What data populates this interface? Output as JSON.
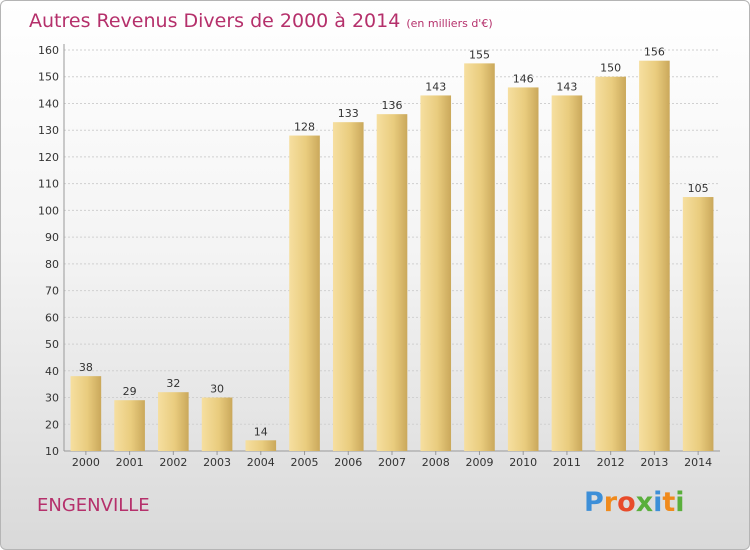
{
  "title": "Autres Revenus Divers de 2000 à 2014",
  "subtitle": "(en milliers d'€)",
  "commune": "ENGENVILLE",
  "logo_text": "Proxiti",
  "chart_data": {
    "type": "bar",
    "title": "Autres Revenus Divers de 2000 à 2014",
    "subtitle": "(en milliers d'€)",
    "categories": [
      "2000",
      "2001",
      "2002",
      "2003",
      "2004",
      "2005",
      "2006",
      "2007",
      "2008",
      "2009",
      "2010",
      "2011",
      "2012",
      "2013",
      "2014"
    ],
    "values": [
      38,
      29,
      32,
      30,
      14,
      128,
      133,
      136,
      143,
      155,
      146,
      143,
      150,
      156,
      105
    ],
    "ylim": [
      10,
      160
    ],
    "yticks": [
      10,
      20,
      30,
      40,
      50,
      60,
      70,
      80,
      90,
      100,
      110,
      120,
      130,
      140,
      150,
      160
    ],
    "grid": true,
    "bar_color": "#e9cd7f"
  }
}
